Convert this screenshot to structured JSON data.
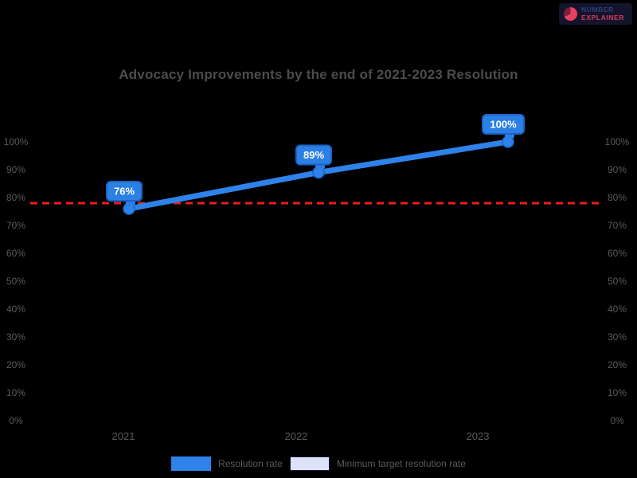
{
  "page": {
    "background": "#000000"
  },
  "brand": {
    "line1": "NUMBER",
    "line2": "EXPLAINER"
  },
  "title": "Advocacy Improvements by the end of 2021-2023 Resolution",
  "chart_data": {
    "type": "line",
    "title": "Advocacy Improvements by the end of 2021-2023 Resolution",
    "categories": [
      "2021",
      "2022",
      "2023"
    ],
    "series": [
      {
        "name": "Resolution rate",
        "values": [
          76,
          89,
          100
        ]
      }
    ],
    "data_labels": [
      "76%",
      "89%",
      "100%"
    ],
    "target_line": {
      "value": 78,
      "color": "#ee1c1c",
      "style": "dashed"
    },
    "ylim": [
      0,
      100
    ],
    "y_ticks": [
      "0%",
      "10%",
      "20%",
      "30%",
      "40%",
      "50%",
      "60%",
      "70%",
      "80%",
      "90%",
      "100%"
    ],
    "y_axis_sides": "both",
    "xlabel": "",
    "ylabel": "",
    "grid": false,
    "legend_position": "bottom",
    "legend": [
      {
        "label": "Resolution rate",
        "swatch_fill": "#2e82ea",
        "swatch_border": "#2e82ea"
      },
      {
        "label": "Minimum target resolution rate",
        "swatch_fill": "#dde3f7",
        "swatch_border": "#1b1b3c"
      }
    ]
  },
  "colors": {
    "line": "#2e82ea",
    "marker": "#2e82ea",
    "marker_border": "#1a64c8",
    "label_box_fill": "#2c7fe3",
    "label_box_border": "#1a64c8",
    "label_text": "#ffffff",
    "target": "#ee1c1c",
    "axis_text": "#5a5a5a",
    "title_text": "#4c4c4c"
  }
}
